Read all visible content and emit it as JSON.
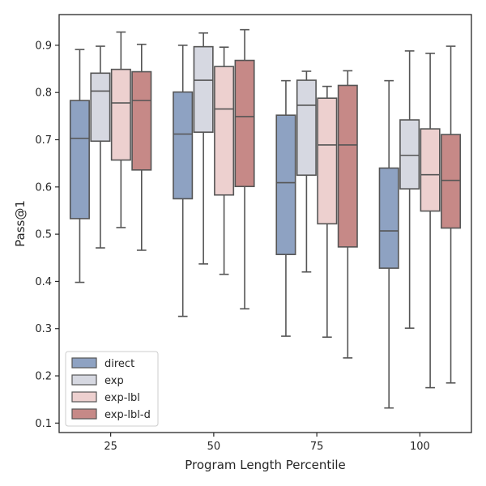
{
  "chart_data": {
    "type": "box",
    "xlabel": "Program Length Percentile",
    "ylabel": "Pass@1",
    "ylim": [
      0.08,
      0.965
    ],
    "yticks": [
      "0.1",
      "0.2",
      "0.3",
      "0.4",
      "0.5",
      "0.6",
      "0.7",
      "0.8",
      "0.9"
    ],
    "categories": [
      "25",
      "50",
      "75",
      "100"
    ],
    "legend_position": "lower-left",
    "series": [
      {
        "name": "direct",
        "color": "#8ea2c2",
        "boxes": [
          {
            "whisker_low": 0.398,
            "q1": 0.533,
            "median": 0.703,
            "q3": 0.783,
            "whisker_high": 0.891
          },
          {
            "whisker_low": 0.326,
            "q1": 0.575,
            "median": 0.712,
            "q3": 0.801,
            "whisker_high": 0.9
          },
          {
            "whisker_low": 0.284,
            "q1": 0.457,
            "median": 0.609,
            "q3": 0.752,
            "whisker_high": 0.825
          },
          {
            "whisker_low": 0.132,
            "q1": 0.428,
            "median": 0.507,
            "q3": 0.64,
            "whisker_high": 0.825
          }
        ]
      },
      {
        "name": "exp",
        "color": "#d6d8e1",
        "boxes": [
          {
            "whisker_low": 0.471,
            "q1": 0.697,
            "median": 0.803,
            "q3": 0.841,
            "whisker_high": 0.898
          },
          {
            "whisker_low": 0.437,
            "q1": 0.716,
            "median": 0.826,
            "q3": 0.897,
            "whisker_high": 0.926
          },
          {
            "whisker_low": 0.42,
            "q1": 0.625,
            "median": 0.773,
            "q3": 0.826,
            "whisker_high": 0.845
          },
          {
            "whisker_low": 0.301,
            "q1": 0.596,
            "median": 0.667,
            "q3": 0.742,
            "whisker_high": 0.888
          }
        ]
      },
      {
        "name": "exp-lbl",
        "color": "#edd0cf",
        "boxes": [
          {
            "whisker_low": 0.514,
            "q1": 0.657,
            "median": 0.778,
            "q3": 0.849,
            "whisker_high": 0.928
          },
          {
            "whisker_low": 0.415,
            "q1": 0.583,
            "median": 0.765,
            "q3": 0.855,
            "whisker_high": 0.896
          },
          {
            "whisker_low": 0.282,
            "q1": 0.522,
            "median": 0.689,
            "q3": 0.788,
            "whisker_high": 0.813
          },
          {
            "whisker_low": 0.175,
            "q1": 0.549,
            "median": 0.626,
            "q3": 0.723,
            "whisker_high": 0.883
          }
        ]
      },
      {
        "name": "exp-lbl-d",
        "color": "#c68987",
        "boxes": [
          {
            "whisker_low": 0.466,
            "q1": 0.636,
            "median": 0.783,
            "q3": 0.844,
            "whisker_high": 0.902
          },
          {
            "whisker_low": 0.342,
            "q1": 0.601,
            "median": 0.749,
            "q3": 0.868,
            "whisker_high": 0.933
          },
          {
            "whisker_low": 0.238,
            "q1": 0.473,
            "median": 0.689,
            "q3": 0.815,
            "whisker_high": 0.846
          },
          {
            "whisker_low": 0.185,
            "q1": 0.513,
            "median": 0.614,
            "q3": 0.711,
            "whisker_high": 0.898
          }
        ]
      }
    ]
  }
}
